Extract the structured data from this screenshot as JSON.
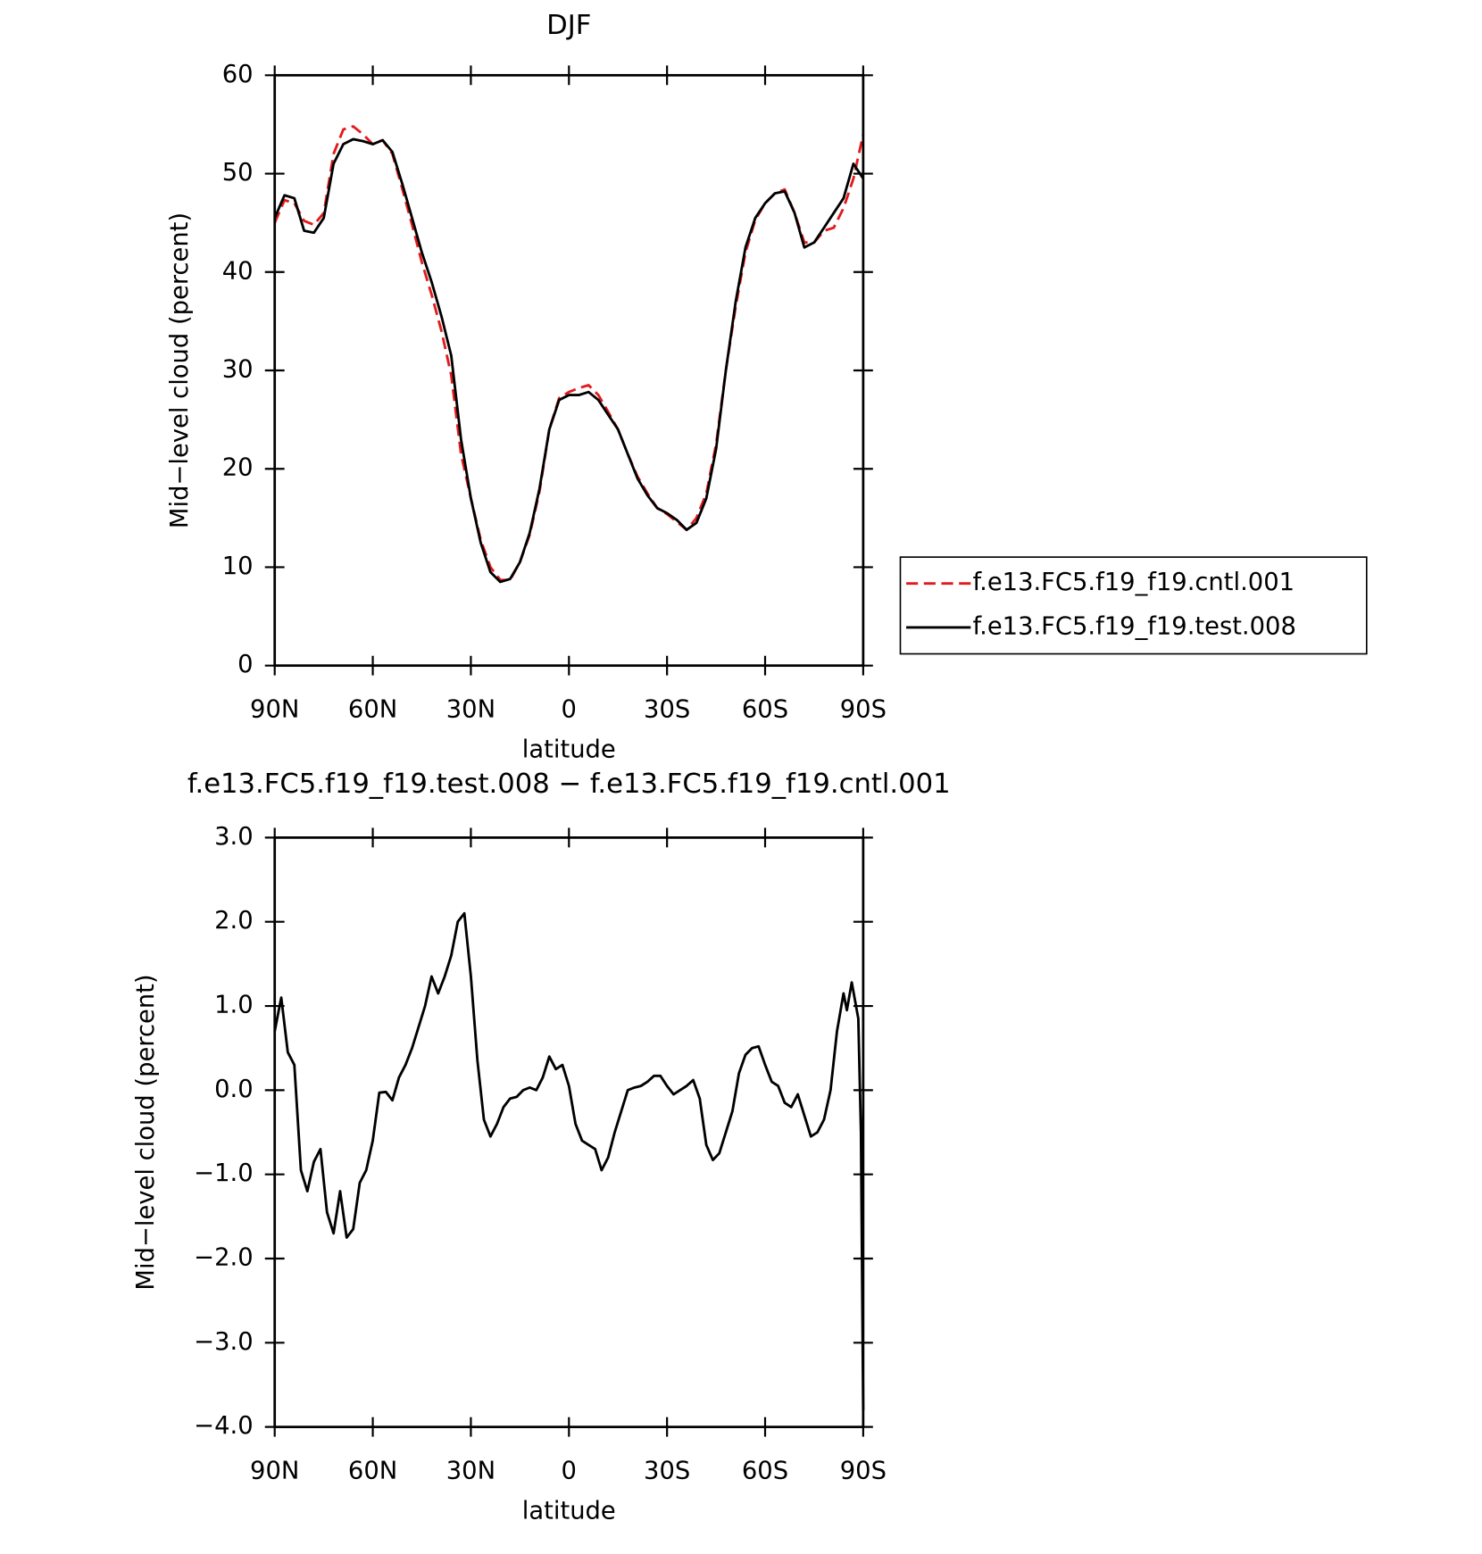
{
  "chart_data": [
    {
      "type": "line",
      "title": "DJF",
      "x_label": "latitude",
      "y_label": "Mid−level cloud (percent)",
      "x": [
        90,
        87,
        84,
        81,
        78,
        75,
        72,
        69,
        66,
        63,
        60,
        57,
        54,
        51,
        48,
        45,
        42,
        39,
        36,
        33,
        30,
        27,
        24,
        21,
        18,
        15,
        12,
        9,
        6,
        3,
        0,
        -3,
        -6,
        -9,
        -12,
        -15,
        -18,
        -21,
        -24,
        -27,
        -30,
        -33,
        -36,
        -39,
        -42,
        -45,
        -48,
        -51,
        -54,
        -57,
        -60,
        -63,
        -66,
        -69,
        -72,
        -75,
        -78,
        -81,
        -84,
        -87,
        -90
      ],
      "xlim": [
        90,
        -90
      ],
      "xticks": [
        {
          "value": 90,
          "label": "90N"
        },
        {
          "value": 60,
          "label": "60N"
        },
        {
          "value": 30,
          "label": "30N"
        },
        0,
        {
          "value": -30,
          "label": "30S"
        },
        {
          "value": -60,
          "label": "60S"
        },
        {
          "value": -90,
          "label": "90S"
        }
      ],
      "ylim": [
        0,
        60
      ],
      "yticks": [
        0,
        10,
        20,
        30,
        40,
        50,
        60
      ],
      "legend": "right",
      "series": [
        {
          "name": "f.e13.FC5.f19_f19.cntl.001",
          "color": "#e31a1c",
          "linestyle": "dashed",
          "values": [
            45,
            47.3,
            47,
            45.2,
            44.8,
            46,
            52,
            54.5,
            54.8,
            54,
            53,
            53.4,
            52,
            48.5,
            44.8,
            41,
            37.7,
            34,
            29.5,
            21.5,
            17,
            12.8,
            10,
            8.7,
            8.7,
            10.5,
            13.3,
            17.7,
            24,
            27.2,
            27.8,
            28.2,
            28.5,
            27.5,
            25.8,
            24,
            21.5,
            19.2,
            17.5,
            16,
            15.4,
            14.6,
            13.8,
            15,
            17.5,
            22.5,
            30,
            36.5,
            42,
            45.3,
            47,
            48,
            48.4,
            46,
            43,
            43,
            44.2,
            44.5,
            46.5,
            49.5,
            54
          ]
        },
        {
          "name": "f.e13.FC5.f19_f19.test.008",
          "color": "#000000",
          "linestyle": "solid",
          "values": [
            45.5,
            47.8,
            47.5,
            44.2,
            44,
            45.5,
            51,
            53,
            53.5,
            53.3,
            53,
            53.4,
            52.2,
            49,
            45.5,
            42,
            39,
            35.5,
            31.5,
            23,
            17,
            12.5,
            9.5,
            8.5,
            8.8,
            10.5,
            13.5,
            18,
            24,
            27,
            27.5,
            27.5,
            27.8,
            27,
            25.5,
            24,
            21.5,
            19,
            17.3,
            16,
            15.5,
            14.8,
            13.8,
            14.5,
            17,
            22,
            30,
            37,
            42.5,
            45.5,
            47,
            48,
            48.2,
            46,
            42.5,
            43,
            44.5,
            46,
            47.5,
            51,
            49.5
          ]
        }
      ]
    },
    {
      "type": "line",
      "title": "f.e13.FC5.f19_f19.test.008 − f.e13.FC5.f19_f19.cntl.001",
      "x_label": "latitude",
      "y_label": "Mid−level cloud (percent)",
      "x": [
        90,
        88,
        86,
        84,
        82,
        80,
        78,
        76,
        74,
        72,
        70,
        68,
        66,
        64,
        62,
        60,
        58,
        56,
        54,
        52,
        50,
        48,
        46,
        44,
        42,
        40,
        38,
        36,
        34,
        32,
        30,
        28,
        26,
        24,
        22,
        20,
        18,
        16,
        14,
        12,
        10,
        8,
        6,
        4,
        2,
        0,
        -2,
        -4,
        -6,
        -8,
        -10,
        -12,
        -14,
        -16,
        -18,
        -20,
        -22,
        -24,
        -26,
        -28,
        -30,
        -32,
        -34,
        -36,
        -38,
        -40,
        -42,
        -44,
        -46,
        -48,
        -50,
        -52,
        -54,
        -56,
        -58,
        -60,
        -62,
        -64,
        -66,
        -68,
        -70,
        -72,
        -74,
        -76,
        -78,
        -80,
        -82,
        -84,
        -85,
        -86.5,
        -88.5,
        -89.3,
        -90
      ],
      "xlim": [
        90,
        -90
      ],
      "xticks": [
        {
          "value": 90,
          "label": "90N"
        },
        {
          "value": 60,
          "label": "60N"
        },
        {
          "value": 30,
          "label": "30N"
        },
        0,
        {
          "value": -30,
          "label": "30S"
        },
        {
          "value": -60,
          "label": "60S"
        },
        {
          "value": -90,
          "label": "90S"
        }
      ],
      "ylim": [
        -4,
        3
      ],
      "yticks": [
        {
          "value": -4,
          "label": "−4.0"
        },
        {
          "value": -3,
          "label": "−3.0"
        },
        {
          "value": -2,
          "label": "−2.0"
        },
        {
          "value": -1,
          "label": "−1.0"
        },
        {
          "value": 0,
          "label": "0.0"
        },
        {
          "value": 1,
          "label": "1.0"
        },
        {
          "value": 2,
          "label": "2.0"
        },
        {
          "value": 3,
          "label": "3.0"
        }
      ],
      "series": [
        {
          "color": "#000000",
          "linestyle": "solid",
          "values": [
            0.7,
            1.1,
            0.45,
            0.3,
            -0.95,
            -1.2,
            -0.85,
            -0.7,
            -1.45,
            -1.7,
            -1.2,
            -1.75,
            -1.65,
            -1.1,
            -0.95,
            -0.6,
            -0.03,
            -0.02,
            -0.12,
            0.15,
            0.3,
            0.5,
            0.75,
            1.0,
            1.35,
            1.15,
            1.35,
            1.6,
            2.0,
            2.1,
            1.35,
            0.35,
            -0.35,
            -0.55,
            -0.4,
            -0.2,
            -0.1,
            -0.08,
            0,
            0.03,
            0,
            0.15,
            0.4,
            0.25,
            0.3,
            0.05,
            -0.4,
            -0.6,
            -0.65,
            -0.7,
            -0.95,
            -0.8,
            -0.5,
            -0.25,
            0,
            0.03,
            0.05,
            0.1,
            0.17,
            0.17,
            0.05,
            -0.05,
            0,
            0.05,
            0.12,
            -0.1,
            -0.65,
            -0.83,
            -0.75,
            -0.5,
            -0.25,
            0.2,
            0.42,
            0.5,
            0.52,
            0.3,
            0.1,
            0.05,
            -0.15,
            -0.2,
            -0.05,
            -0.3,
            -0.55,
            -0.5,
            -0.35,
            0,
            0.7,
            1.15,
            0.95,
            1.28,
            0.85,
            -0.5,
            -3.8
          ]
        }
      ]
    }
  ]
}
